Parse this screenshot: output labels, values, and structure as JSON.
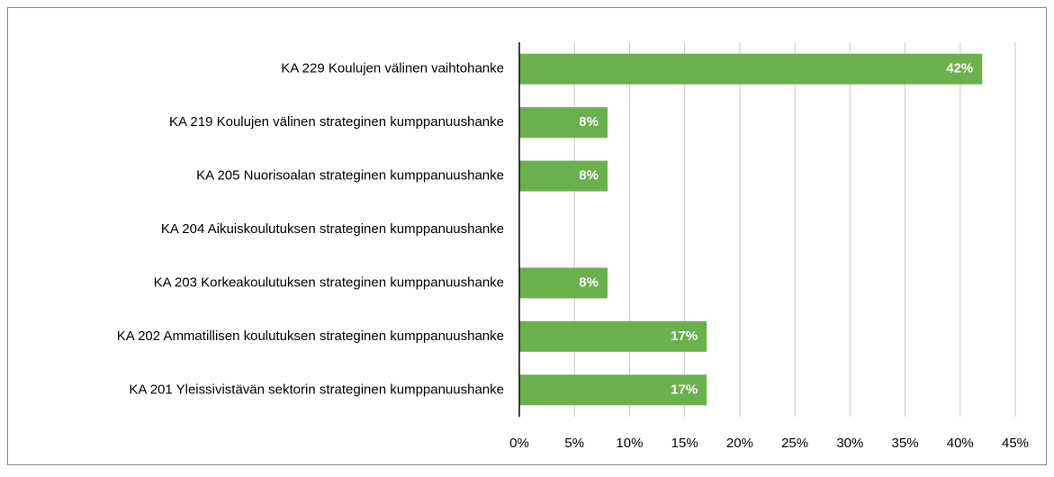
{
  "chart_data": {
    "type": "hbar",
    "categories": [
      "KA 229 Koulujen välinen vaihtohanke",
      "KA 219 Koulujen välinen strateginen kumppanuushanke",
      "KA 205 Nuorisoalan strateginen kumppanuushanke",
      "KA 204 Aikuiskoulutuksen strateginen kumppanuushanke",
      "KA 203 Korkeakoulutuksen strateginen kumppanuushanke",
      "KA 202 Ammatillisen koulutuksen strateginen kumppanuushanke",
      "KA 201 Yleissivistävän sektorin strateginen kumppanuushanke"
    ],
    "values": [
      42,
      8,
      8,
      null,
      8,
      17,
      17
    ],
    "value_labels": [
      "42%",
      "8%",
      "8%",
      null,
      "8%",
      "17%",
      "17%"
    ],
    "color": "#6ab04c",
    "xlim": [
      0,
      45
    ],
    "xticks": [
      {
        "value": 0,
        "label": "0%"
      },
      {
        "value": 5,
        "label": "5%"
      },
      {
        "value": 10,
        "label": "10%"
      },
      {
        "value": 15,
        "label": "15%"
      },
      {
        "value": 20,
        "label": "20%"
      },
      {
        "value": 25,
        "label": "25%"
      },
      {
        "value": 30,
        "label": "30%"
      },
      {
        "value": 35,
        "label": "35%"
      },
      {
        "value": 40,
        "label": "40%"
      },
      {
        "value": 45,
        "label": "45%"
      }
    ],
    "grid": true
  }
}
